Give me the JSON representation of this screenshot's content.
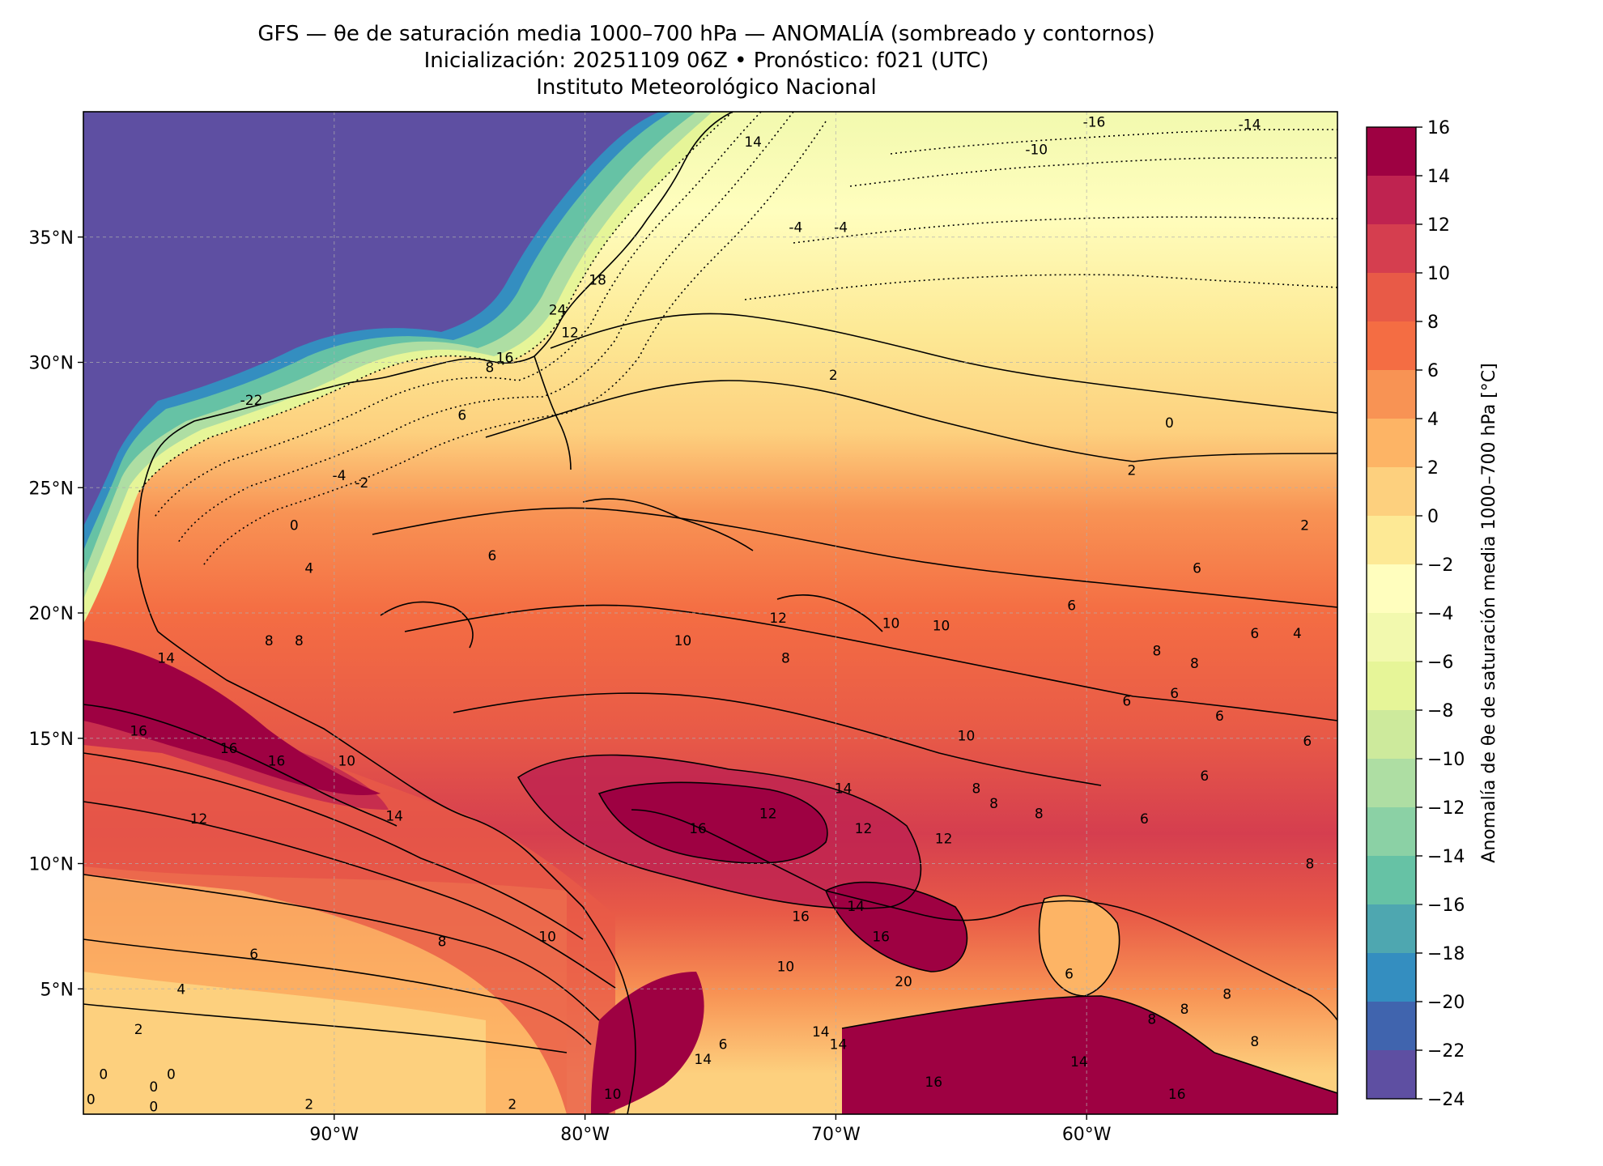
{
  "title": {
    "line1": "GFS — θe de saturación media 1000–700 hPa — ANOMALÍA (sombreado y contornos)",
    "line2": "Inicialización: 20251109 06Z   •   Pronóstico: f021 (UTC)",
    "line3": "Instituto Meteorológico Nacional"
  },
  "map": {
    "lon_range": [
      -100,
      -50
    ],
    "lat_range": [
      0,
      40
    ],
    "lon_ticks": [
      {
        "value": -90,
        "label": "90°W"
      },
      {
        "value": -80,
        "label": "80°W"
      },
      {
        "value": -70,
        "label": "70°W"
      },
      {
        "value": -60,
        "label": "60°W"
      }
    ],
    "lat_ticks": [
      {
        "value": 35,
        "label": "35°N"
      },
      {
        "value": 30,
        "label": "30°N"
      },
      {
        "value": 25,
        "label": "25°N"
      },
      {
        "value": 20,
        "label": "20°N"
      },
      {
        "value": 15,
        "label": "15°N"
      },
      {
        "value": 10,
        "label": "10°N"
      },
      {
        "value": 5,
        "label": "5°N"
      }
    ],
    "gridlines": true,
    "contour_labels": [
      {
        "lon": -59.7,
        "lat": 39.6,
        "text": "-16"
      },
      {
        "lon": -53.5,
        "lat": 39.5,
        "text": "-14"
      },
      {
        "lon": -62.0,
        "lat": 38.5,
        "text": "-10"
      },
      {
        "lon": -73.3,
        "lat": 38.8,
        "text": "14"
      },
      {
        "lon": -71.6,
        "lat": 35.4,
        "text": "-4"
      },
      {
        "lon": -69.8,
        "lat": 35.4,
        "text": "-4"
      },
      {
        "lon": -79.5,
        "lat": 33.3,
        "text": "18"
      },
      {
        "lon": -81.1,
        "lat": 32.1,
        "text": "24"
      },
      {
        "lon": -80.6,
        "lat": 31.2,
        "text": "12"
      },
      {
        "lon": -83.2,
        "lat": 30.2,
        "text": "16"
      },
      {
        "lon": -83.8,
        "lat": 29.8,
        "text": "8"
      },
      {
        "lon": -84.9,
        "lat": 27.9,
        "text": "6"
      },
      {
        "lon": -93.3,
        "lat": 28.5,
        "text": "-22"
      },
      {
        "lon": -70.1,
        "lat": 29.5,
        "text": "2"
      },
      {
        "lon": -56.7,
        "lat": 27.6,
        "text": "0"
      },
      {
        "lon": -58.2,
        "lat": 25.7,
        "text": "2"
      },
      {
        "lon": -89.8,
        "lat": 25.5,
        "text": "-4"
      },
      {
        "lon": -88.9,
        "lat": 25.2,
        "text": "-2"
      },
      {
        "lon": -91.6,
        "lat": 23.5,
        "text": "0"
      },
      {
        "lon": -51.3,
        "lat": 23.5,
        "text": "2"
      },
      {
        "lon": -91.0,
        "lat": 21.8,
        "text": "4"
      },
      {
        "lon": -83.7,
        "lat": 22.3,
        "text": "6"
      },
      {
        "lon": -55.6,
        "lat": 21.8,
        "text": "6"
      },
      {
        "lon": -60.6,
        "lat": 20.3,
        "text": "6"
      },
      {
        "lon": -67.8,
        "lat": 19.6,
        "text": "10"
      },
      {
        "lon": -65.8,
        "lat": 19.5,
        "text": "10"
      },
      {
        "lon": -72.3,
        "lat": 19.8,
        "text": "12"
      },
      {
        "lon": -53.3,
        "lat": 19.2,
        "text": "6"
      },
      {
        "lon": -92.6,
        "lat": 18.9,
        "text": "8"
      },
      {
        "lon": -91.4,
        "lat": 18.9,
        "text": "8"
      },
      {
        "lon": -76.1,
        "lat": 18.9,
        "text": "10"
      },
      {
        "lon": -57.2,
        "lat": 18.5,
        "text": "8"
      },
      {
        "lon": -55.7,
        "lat": 18.0,
        "text": "8"
      },
      {
        "lon": -72.0,
        "lat": 18.2,
        "text": "8"
      },
      {
        "lon": -51.6,
        "lat": 19.2,
        "text": "4"
      },
      {
        "lon": -96.7,
        "lat": 18.2,
        "text": "14"
      },
      {
        "lon": -56.5,
        "lat": 16.8,
        "text": "6"
      },
      {
        "lon": -58.4,
        "lat": 16.5,
        "text": "6"
      },
      {
        "lon": -54.7,
        "lat": 15.9,
        "text": "6"
      },
      {
        "lon": -64.8,
        "lat": 15.1,
        "text": "10"
      },
      {
        "lon": -51.2,
        "lat": 14.9,
        "text": "6"
      },
      {
        "lon": -97.8,
        "lat": 15.3,
        "text": "16"
      },
      {
        "lon": -94.2,
        "lat": 14.6,
        "text": "16"
      },
      {
        "lon": -92.3,
        "lat": 14.1,
        "text": "16"
      },
      {
        "lon": -89.5,
        "lat": 14.1,
        "text": "10"
      },
      {
        "lon": -55.3,
        "lat": 13.5,
        "text": "6"
      },
      {
        "lon": -64.4,
        "lat": 13.0,
        "text": "8"
      },
      {
        "lon": -63.7,
        "lat": 12.4,
        "text": "8"
      },
      {
        "lon": -69.7,
        "lat": 13.0,
        "text": "14"
      },
      {
        "lon": -95.4,
        "lat": 11.8,
        "text": "12"
      },
      {
        "lon": -87.6,
        "lat": 11.9,
        "text": "14"
      },
      {
        "lon": -57.7,
        "lat": 11.8,
        "text": "6"
      },
      {
        "lon": -75.5,
        "lat": 11.4,
        "text": "16"
      },
      {
        "lon": -72.7,
        "lat": 12.0,
        "text": "12"
      },
      {
        "lon": -68.9,
        "lat": 11.4,
        "text": "12"
      },
      {
        "lon": -61.9,
        "lat": 12.0,
        "text": "8"
      },
      {
        "lon": -65.7,
        "lat": 11.0,
        "text": "12"
      },
      {
        "lon": -51.1,
        "lat": 10.0,
        "text": "8"
      },
      {
        "lon": -69.2,
        "lat": 8.3,
        "text": "14"
      },
      {
        "lon": -71.4,
        "lat": 7.9,
        "text": "16"
      },
      {
        "lon": -68.2,
        "lat": 7.1,
        "text": "16"
      },
      {
        "lon": -81.5,
        "lat": 7.1,
        "text": "10"
      },
      {
        "lon": -85.7,
        "lat": 6.9,
        "text": "8"
      },
      {
        "lon": -93.2,
        "lat": 6.4,
        "text": "6"
      },
      {
        "lon": -72.0,
        "lat": 5.9,
        "text": "10"
      },
      {
        "lon": -67.3,
        "lat": 5.3,
        "text": "20"
      },
      {
        "lon": -60.7,
        "lat": 5.6,
        "text": "6"
      },
      {
        "lon": -96.1,
        "lat": 5.0,
        "text": "4"
      },
      {
        "lon": -54.4,
        "lat": 4.8,
        "text": "8"
      },
      {
        "lon": -56.1,
        "lat": 4.2,
        "text": "8"
      },
      {
        "lon": -57.4,
        "lat": 3.8,
        "text": "8"
      },
      {
        "lon": -70.6,
        "lat": 3.3,
        "text": "14"
      },
      {
        "lon": -69.9,
        "lat": 2.8,
        "text": "14"
      },
      {
        "lon": -97.8,
        "lat": 3.4,
        "text": "2"
      },
      {
        "lon": -74.5,
        "lat": 2.8,
        "text": "6"
      },
      {
        "lon": -53.3,
        "lat": 2.9,
        "text": "8"
      },
      {
        "lon": -75.3,
        "lat": 2.2,
        "text": "14"
      },
      {
        "lon": -60.3,
        "lat": 2.1,
        "text": "14"
      },
      {
        "lon": -96.5,
        "lat": 1.6,
        "text": "0"
      },
      {
        "lon": -99.2,
        "lat": 1.6,
        "text": "0"
      },
      {
        "lon": -97.2,
        "lat": 1.1,
        "text": "0"
      },
      {
        "lon": -99.7,
        "lat": 0.6,
        "text": "0"
      },
      {
        "lon": -78.9,
        "lat": 0.8,
        "text": "10"
      },
      {
        "lon": -97.2,
        "lat": 0.3,
        "text": "0"
      },
      {
        "lon": -66.1,
        "lat": 1.3,
        "text": "16"
      },
      {
        "lon": -56.4,
        "lat": 0.8,
        "text": "16"
      },
      {
        "lon": -91.0,
        "lat": 0.4,
        "text": "2"
      },
      {
        "lon": -82.9,
        "lat": 0.4,
        "text": "2"
      }
    ]
  },
  "colorbar": {
    "label": "Anomalía de θe de saturación media 1000–700 hPa [°C]",
    "min": -24,
    "max": 16,
    "ticks": [
      16,
      14,
      12,
      10,
      8,
      6,
      4,
      2,
      0,
      -2,
      -4,
      -6,
      -8,
      -10,
      -12,
      -14,
      -16,
      -18,
      -20,
      -22,
      -24
    ],
    "tick_labels": [
      "16",
      "14",
      "12",
      "10",
      "8",
      "6",
      "4",
      "2",
      "0",
      "−2",
      "−4",
      "−6",
      "−8",
      "−10",
      "−12",
      "−14",
      "−16",
      "−18",
      "−20",
      "−22",
      "−24"
    ],
    "colors": [
      "#5e4fa2",
      "#4064ae",
      "#348ec0",
      "#4ea7b0",
      "#66c2a5",
      "#8bd1a5",
      "#aedea3",
      "#cdea9c",
      "#e6f598",
      "#f2f9ae",
      "#fffebe",
      "#fde995",
      "#fdd07e",
      "#fdb465",
      "#f89354",
      "#f46d43",
      "#e85a47",
      "#d53e4f",
      "#bf2350",
      "#9e0142"
    ]
  }
}
